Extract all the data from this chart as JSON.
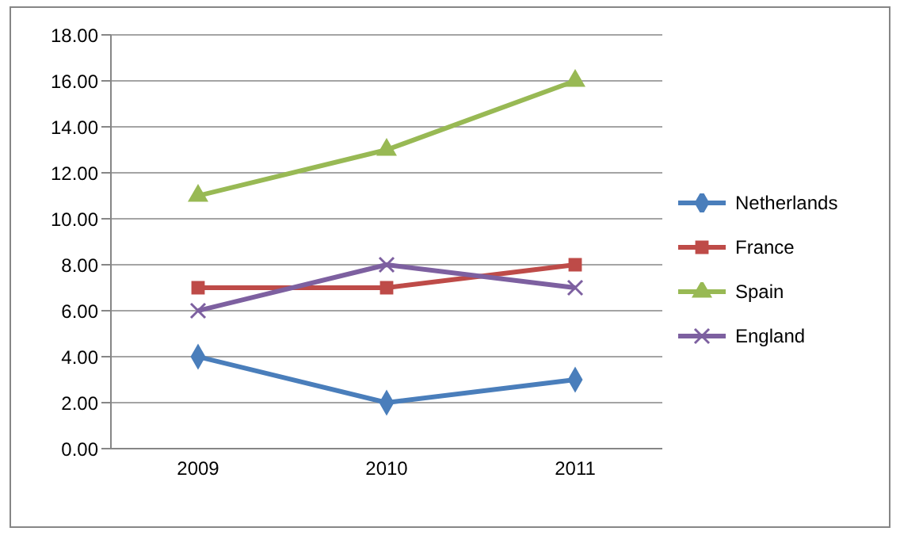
{
  "chart_data": {
    "type": "line",
    "categories": [
      "2009",
      "2010",
      "2011"
    ],
    "ylim": [
      0,
      18
    ],
    "yticks": [
      {
        "value": 0,
        "label": "0.00"
      },
      {
        "value": 2,
        "label": "2.00"
      },
      {
        "value": 4,
        "label": "4.00"
      },
      {
        "value": 6,
        "label": "6.00"
      },
      {
        "value": 8,
        "label": "8.00"
      },
      {
        "value": 10,
        "label": "10.00"
      },
      {
        "value": 12,
        "label": "12.00"
      },
      {
        "value": 14,
        "label": "14.00"
      },
      {
        "value": 16,
        "label": "16.00"
      },
      {
        "value": 18,
        "label": "18.00"
      }
    ],
    "grid": "y",
    "legend": "right",
    "series": [
      {
        "name": "Netherlands",
        "color": "#4a7ebb",
        "marker": "diamond",
        "values": [
          4,
          2,
          3
        ]
      },
      {
        "name": "France",
        "color": "#be4b48",
        "marker": "square",
        "values": [
          7,
          7,
          8
        ]
      },
      {
        "name": "Spain",
        "color": "#98b954",
        "marker": "triangle",
        "values": [
          11,
          13,
          16
        ]
      },
      {
        "name": "England",
        "color": "#7d60a0",
        "marker": "cross",
        "values": [
          6,
          8,
          7
        ]
      }
    ]
  }
}
